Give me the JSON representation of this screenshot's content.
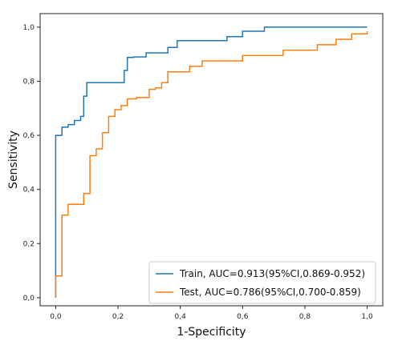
{
  "chart_data": {
    "type": "line",
    "title": "",
    "xlabel": "1-Specificity",
    "ylabel": "Sensitivity",
    "xlim": [
      -0.05,
      1.05
    ],
    "ylim": [
      -0.03,
      1.05
    ],
    "xticks": [
      0.0,
      0.2,
      0.4,
      0.6,
      0.8,
      1.0
    ],
    "xtick_labels": [
      "0,0",
      "0,2",
      "0,4",
      "0,6",
      "0,8",
      "1,0"
    ],
    "yticks": [
      0.0,
      0.2,
      0.4,
      0.6,
      0.8,
      1.0
    ],
    "ytick_labels": [
      "0,0",
      "0,2",
      "0,4",
      "0,6",
      "0,8",
      "1,0"
    ],
    "grid": false,
    "legend_position": "bottom-right",
    "series": [
      {
        "name": "Train, AUC=0.913(95%CI,0.869-0.952)",
        "color": "#1f77b4",
        "x": [
          0.0,
          0.0,
          0.0,
          0.02,
          0.02,
          0.04,
          0.04,
          0.06,
          0.06,
          0.08,
          0.08,
          0.09,
          0.09,
          0.1,
          0.1,
          0.22,
          0.22,
          0.23,
          0.23,
          0.25,
          0.25,
          0.29,
          0.29,
          0.36,
          0.36,
          0.39,
          0.39,
          0.55,
          0.55,
          0.6,
          0.6,
          0.67,
          0.67,
          1.0
        ],
        "y": [
          0.0,
          0.3,
          0.6,
          0.6,
          0.63,
          0.63,
          0.64,
          0.64,
          0.655,
          0.655,
          0.67,
          0.67,
          0.745,
          0.745,
          0.795,
          0.795,
          0.84,
          0.84,
          0.888,
          0.888,
          0.89,
          0.89,
          0.905,
          0.905,
          0.925,
          0.925,
          0.95,
          0.95,
          0.965,
          0.965,
          0.985,
          0.985,
          1.0,
          1.0
        ]
      },
      {
        "name": "Test, AUC=0.786(95%CI,0.700-0.859)",
        "color": "#ff7f0e",
        "x": [
          0.0,
          0.0,
          0.02,
          0.02,
          0.04,
          0.04,
          0.09,
          0.09,
          0.11,
          0.11,
          0.13,
          0.13,
          0.15,
          0.15,
          0.17,
          0.17,
          0.19,
          0.19,
          0.21,
          0.21,
          0.23,
          0.23,
          0.26,
          0.26,
          0.3,
          0.3,
          0.32,
          0.32,
          0.34,
          0.34,
          0.36,
          0.36,
          0.43,
          0.43,
          0.47,
          0.47,
          0.6,
          0.6,
          0.73,
          0.73,
          0.84,
          0.84,
          0.9,
          0.9,
          0.95,
          0.95,
          1.0,
          1.0
        ],
        "y": [
          0.0,
          0.08,
          0.08,
          0.305,
          0.305,
          0.345,
          0.345,
          0.385,
          0.385,
          0.525,
          0.525,
          0.55,
          0.55,
          0.61,
          0.61,
          0.67,
          0.67,
          0.695,
          0.695,
          0.71,
          0.71,
          0.735,
          0.735,
          0.74,
          0.74,
          0.77,
          0.77,
          0.775,
          0.775,
          0.795,
          0.795,
          0.835,
          0.835,
          0.855,
          0.855,
          0.875,
          0.875,
          0.895,
          0.895,
          0.915,
          0.915,
          0.935,
          0.935,
          0.955,
          0.955,
          0.975,
          0.975,
          0.985
        ]
      }
    ]
  }
}
